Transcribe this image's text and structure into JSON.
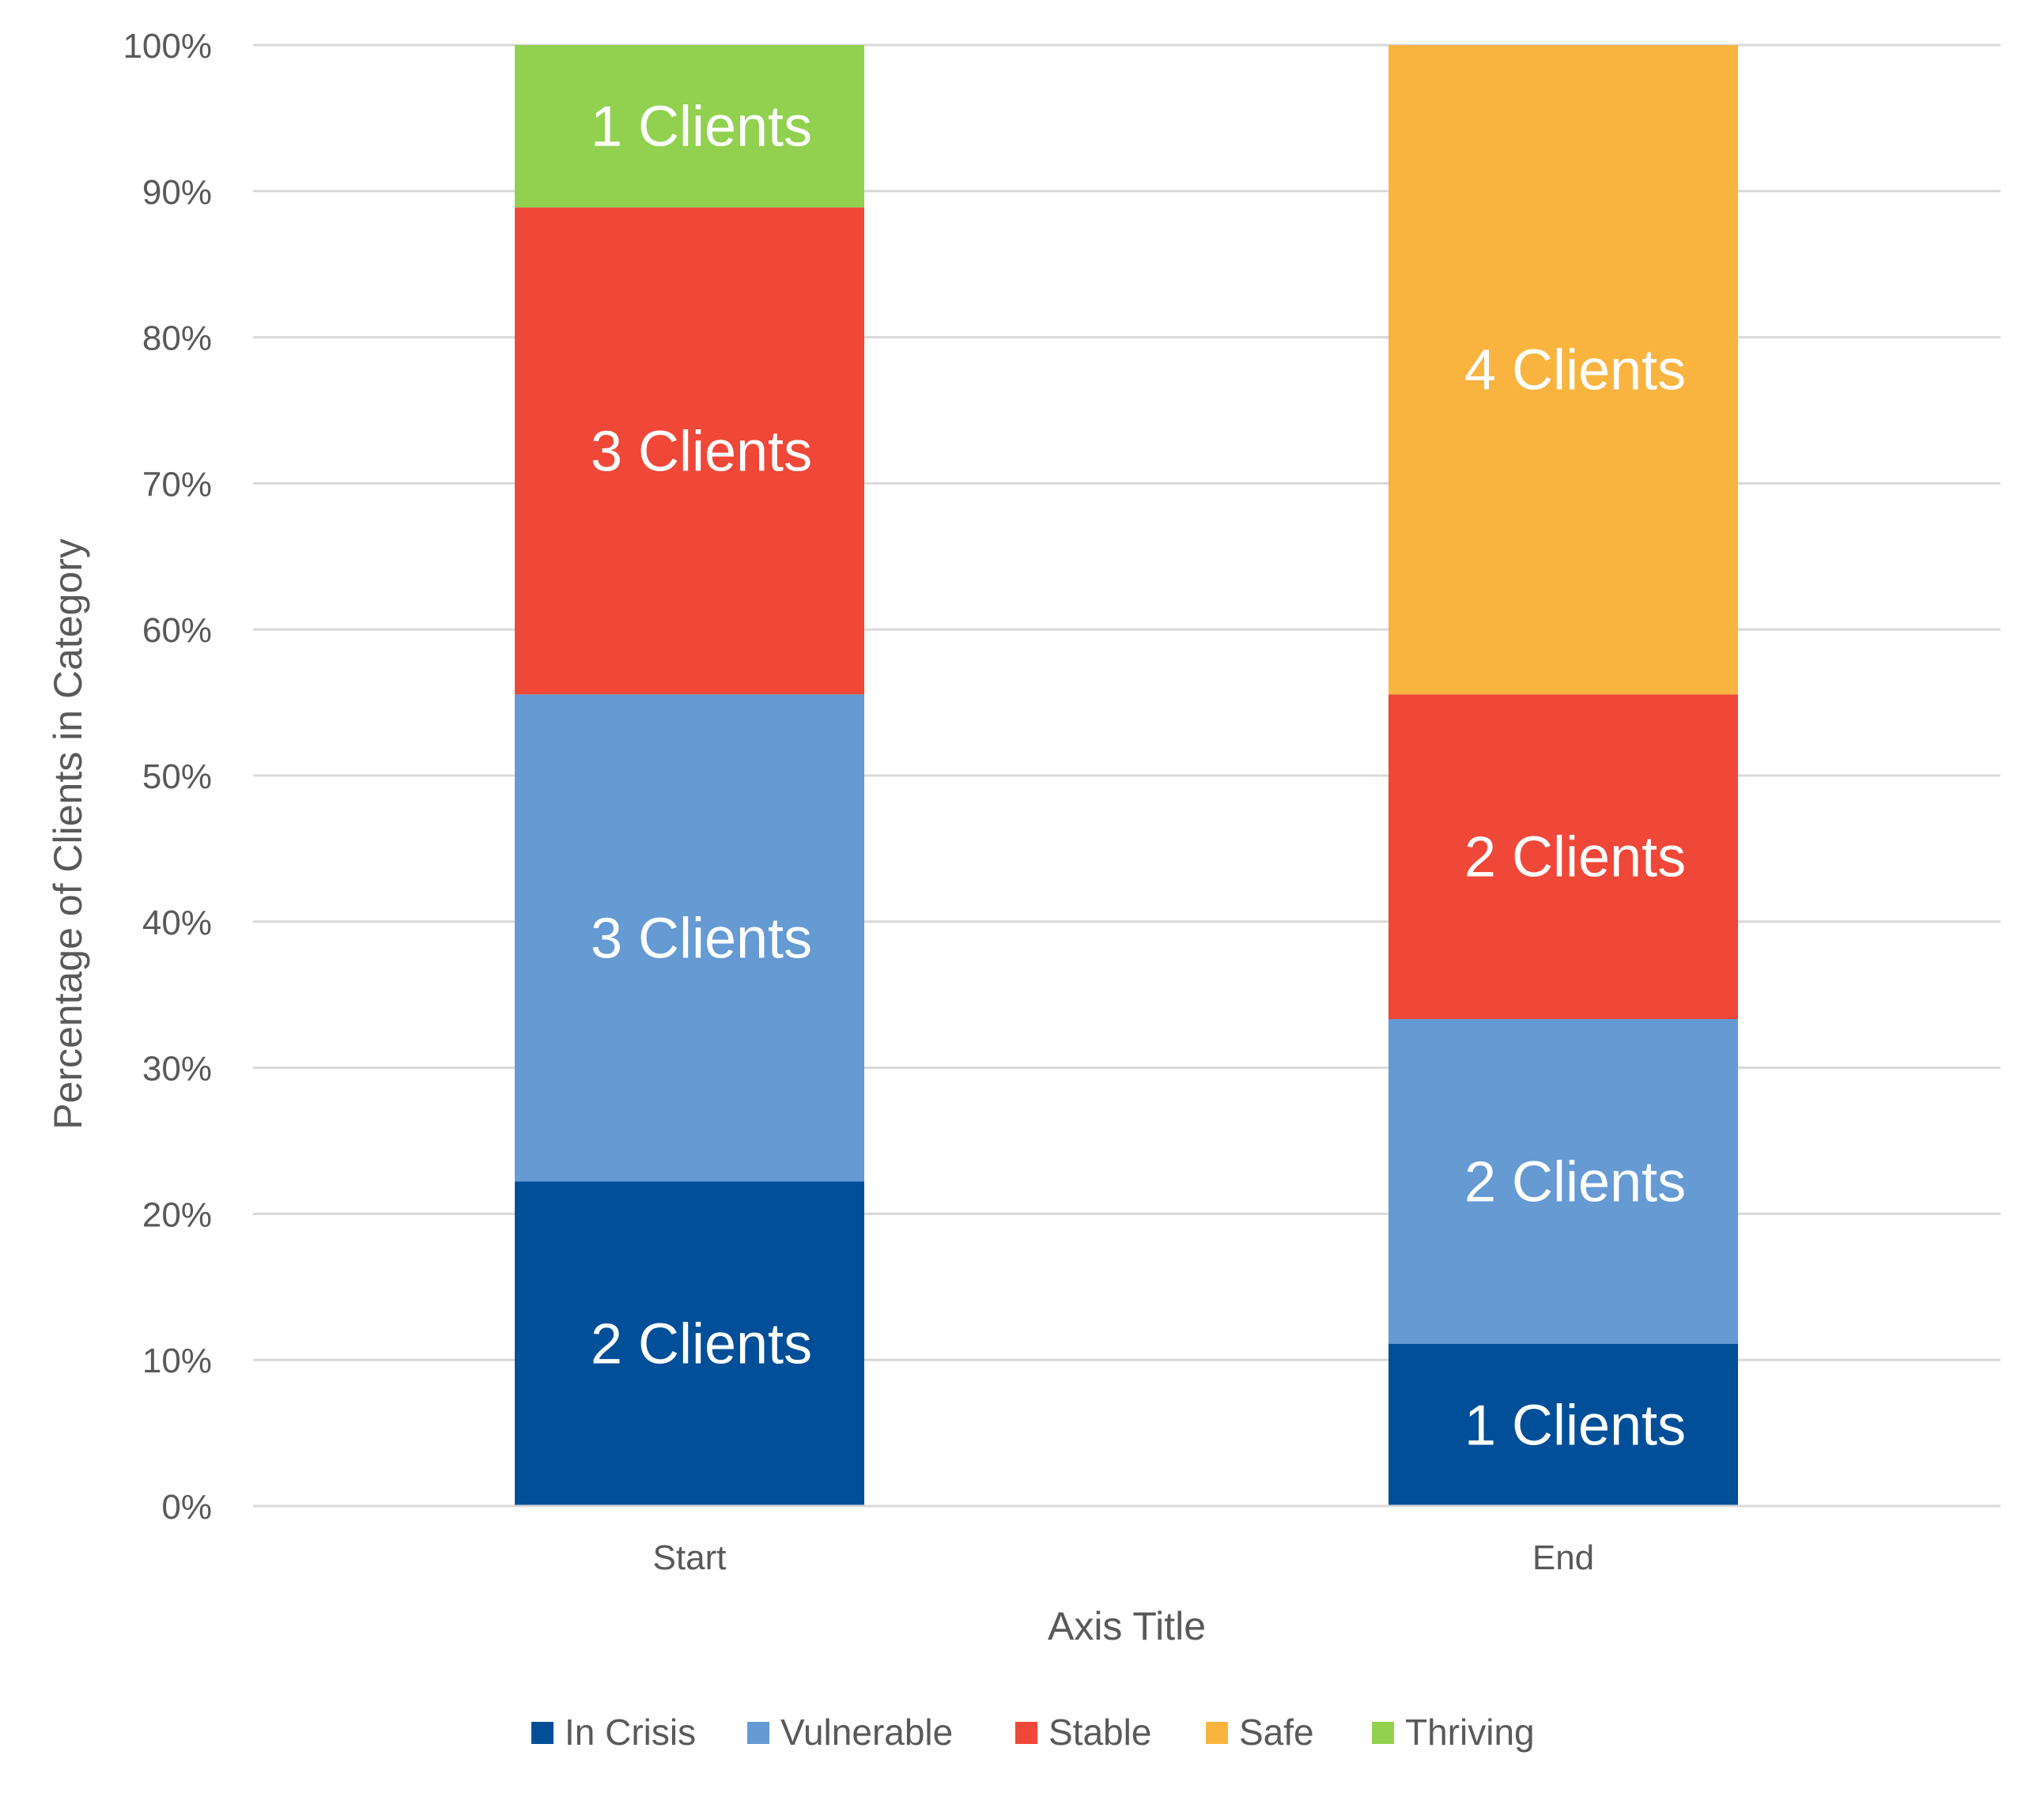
{
  "chart_data": {
    "type": "bar",
    "stacked": true,
    "percent_stacked": true,
    "categories": [
      "Start",
      "End"
    ],
    "series": [
      {
        "name": "In Crisis",
        "color": "#004F98",
        "values": [
          2,
          1
        ],
        "labels": [
          "2 Clients",
          "1 Clients"
        ]
      },
      {
        "name": "Vulnerable",
        "color": "#659AD3",
        "values": [
          3,
          2
        ],
        "labels": [
          "3 Clients",
          "2 Clients"
        ]
      },
      {
        "name": "Stable",
        "color": "#EF4738",
        "values": [
          3,
          2
        ],
        "labels": [
          "3 Clients",
          "2 Clients"
        ]
      },
      {
        "name": "Safe",
        "color": "#F9B440",
        "values": [
          0,
          4
        ],
        "labels": [
          "",
          "4 Clients"
        ]
      },
      {
        "name": "Thriving",
        "color": "#92D050",
        "values": [
          1,
          0
        ],
        "labels": [
          "1 Clients",
          ""
        ]
      }
    ],
    "title": "",
    "xlabel": "Axis Title",
    "ylabel": "Percentage of Clients in Category",
    "ylim": [
      0,
      100
    ],
    "yticks": [
      "0%",
      "10%",
      "20%",
      "30%",
      "40%",
      "50%",
      "60%",
      "70%",
      "80%",
      "90%",
      "100%"
    ],
    "grid": true,
    "legend_position": "bottom"
  }
}
